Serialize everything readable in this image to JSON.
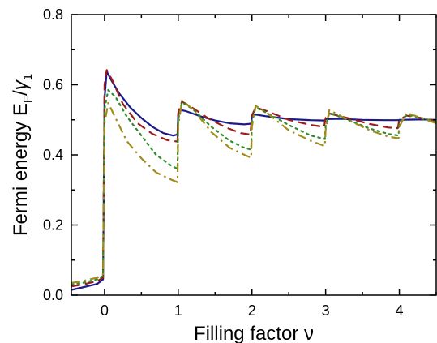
{
  "chart_data": {
    "type": "line",
    "xlabel": "Filling factor ν",
    "ylabel": {
      "main": "Fermi energy E",
      "sub_f": "F",
      "slash": "/",
      "gamma": "γ",
      "sub_1": "1"
    },
    "xlim": [
      -0.45,
      4.5
    ],
    "ylim": [
      0.0,
      0.8
    ],
    "xticks": [
      0,
      1,
      2,
      3,
      4
    ],
    "xtick_labels": [
      "0",
      "1",
      "2",
      "3",
      "4"
    ],
    "yticks": [
      0.0,
      0.2,
      0.4,
      0.6,
      0.8
    ],
    "ytick_labels": [
      "0.0",
      "0.2",
      "0.4",
      "0.6",
      "0.8"
    ],
    "grid": false,
    "series": [
      {
        "style": "solid",
        "color": "#1a1a8c",
        "x": [
          -0.45,
          -0.3,
          -0.1,
          -0.02,
          0.0,
          0.03,
          0.1,
          0.2,
          0.35,
          0.5,
          0.65,
          0.8,
          0.93,
          0.99,
          1.0,
          1.03,
          1.1,
          1.3,
          1.5,
          1.7,
          1.9,
          1.99,
          2.0,
          2.05,
          2.2,
          2.5,
          2.8,
          2.99,
          3.0,
          3.2,
          3.5,
          3.8,
          3.99,
          4.0,
          4.3,
          4.5
        ],
        "y": [
          0.015,
          0.022,
          0.032,
          0.045,
          0.56,
          0.638,
          0.61,
          0.575,
          0.535,
          0.505,
          0.48,
          0.462,
          0.455,
          0.458,
          0.515,
          0.528,
          0.525,
          0.51,
          0.498,
          0.49,
          0.487,
          0.489,
          0.508,
          0.515,
          0.51,
          0.502,
          0.499,
          0.498,
          0.502,
          0.503,
          0.5,
          0.499,
          0.499,
          0.5,
          0.501,
          0.5
        ]
      },
      {
        "style": "dashed",
        "color": "#9b1b1b",
        "x": [
          -0.45,
          -0.3,
          -0.1,
          -0.02,
          0.0,
          0.03,
          0.1,
          0.25,
          0.45,
          0.65,
          0.85,
          0.99,
          1.0,
          1.05,
          1.15,
          1.4,
          1.65,
          1.85,
          1.98,
          2.0,
          2.05,
          2.2,
          2.5,
          2.8,
          2.98,
          3.0,
          3.05,
          3.3,
          3.6,
          3.85,
          3.98,
          4.0,
          4.1,
          4.3,
          4.5
        ],
        "y": [
          0.025,
          0.03,
          0.04,
          0.05,
          0.6,
          0.642,
          0.615,
          0.545,
          0.49,
          0.46,
          0.442,
          0.438,
          0.52,
          0.552,
          0.54,
          0.505,
          0.478,
          0.462,
          0.458,
          0.512,
          0.535,
          0.525,
          0.5,
          0.485,
          0.48,
          0.505,
          0.518,
          0.505,
          0.488,
          0.478,
          0.476,
          0.5,
          0.512,
          0.505,
          0.497
        ]
      },
      {
        "style": "dotted",
        "color": "#2e8b2e",
        "x": [
          -0.45,
          -0.3,
          -0.1,
          -0.02,
          0.0,
          0.05,
          0.15,
          0.3,
          0.5,
          0.7,
          0.9,
          0.99,
          1.0,
          1.05,
          1.2,
          1.45,
          1.7,
          1.9,
          1.99,
          2.0,
          2.05,
          2.2,
          2.5,
          2.8,
          2.99,
          3.0,
          3.05,
          3.3,
          3.6,
          3.85,
          3.99,
          4.0,
          4.1,
          4.3,
          4.5
        ],
        "y": [
          0.03,
          0.035,
          0.045,
          0.055,
          0.53,
          0.585,
          0.565,
          0.51,
          0.455,
          0.4,
          0.37,
          0.36,
          0.5,
          0.55,
          0.53,
          0.48,
          0.44,
          0.42,
          0.415,
          0.495,
          0.535,
          0.52,
          0.485,
          0.455,
          0.445,
          0.48,
          0.52,
          0.5,
          0.475,
          0.46,
          0.455,
          0.49,
          0.515,
          0.505,
          0.495
        ]
      },
      {
        "style": "dashdot",
        "color": "#a08c1a",
        "x": [
          -0.45,
          -0.3,
          -0.1,
          -0.02,
          0.0,
          0.05,
          0.15,
          0.3,
          0.5,
          0.7,
          0.9,
          0.99,
          1.0,
          1.05,
          1.2,
          1.45,
          1.7,
          1.9,
          1.99,
          2.0,
          2.05,
          2.2,
          2.5,
          2.8,
          2.99,
          3.0,
          3.05,
          3.3,
          3.6,
          3.85,
          3.99,
          4.0,
          4.1,
          4.3,
          4.5
        ],
        "y": [
          0.035,
          0.04,
          0.05,
          0.06,
          0.49,
          0.548,
          0.505,
          0.44,
          0.39,
          0.35,
          0.33,
          0.322,
          0.48,
          0.555,
          0.53,
          0.465,
          0.42,
          0.4,
          0.392,
          0.48,
          0.54,
          0.52,
          0.47,
          0.44,
          0.425,
          0.47,
          0.528,
          0.5,
          0.47,
          0.452,
          0.447,
          0.48,
          0.52,
          0.505,
          0.49
        ]
      }
    ]
  }
}
